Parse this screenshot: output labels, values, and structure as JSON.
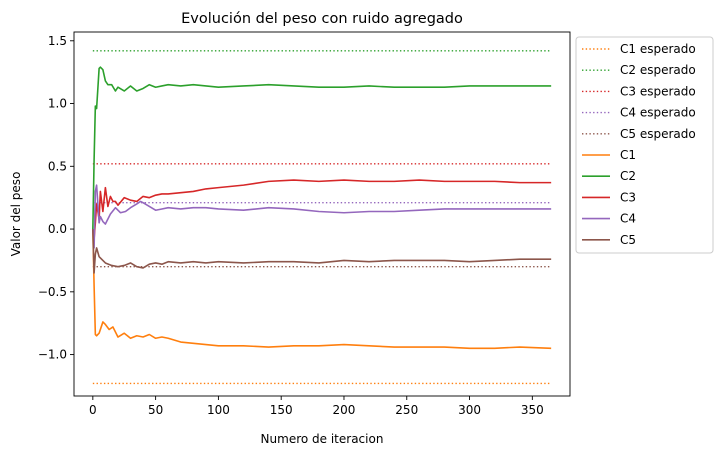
{
  "chart_data": {
    "type": "line",
    "title": "Evolución del peso con ruido agregado",
    "xlabel": "Numero de iteracion",
    "ylabel": "Valor del peso",
    "xlim": [
      -15,
      380
    ],
    "ylim": [
      -1.33,
      1.57
    ],
    "xticks": [
      0,
      50,
      100,
      150,
      200,
      250,
      300,
      350
    ],
    "yticks": [
      -1.0,
      -0.5,
      0.0,
      0.5,
      1.0,
      1.5
    ],
    "ytick_labels": [
      "−1.0",
      "−0.5",
      "0.0",
      "0.5",
      "1.0",
      "1.5"
    ],
    "grid": false,
    "legend_position": "outside-right-top",
    "expected": [
      {
        "name": "C1 esperado",
        "color": "#ff7f0e",
        "x": [
          0,
          365
        ],
        "value": -1.23
      },
      {
        "name": "C2 esperado",
        "color": "#2ca02c",
        "x": [
          0,
          365
        ],
        "value": 1.42
      },
      {
        "name": "C3 esperado",
        "color": "#d62728",
        "x": [
          0,
          365
        ],
        "value": 0.52
      },
      {
        "name": "C4 esperado",
        "color": "#9467bd",
        "x": [
          0,
          365
        ],
        "value": 0.21
      },
      {
        "name": "C5 esperado",
        "color": "#8c564b",
        "x": [
          0,
          365
        ],
        "value": -0.3
      }
    ],
    "series": [
      {
        "name": "C1",
        "color": "#ff7f0e",
        "x": [
          0,
          1,
          2,
          3,
          5,
          8,
          10,
          13,
          16,
          20,
          25,
          30,
          35,
          40,
          45,
          50,
          55,
          60,
          70,
          80,
          90,
          100,
          120,
          140,
          160,
          180,
          200,
          220,
          240,
          260,
          280,
          300,
          320,
          340,
          365
        ],
        "y": [
          0.0,
          -0.45,
          -0.84,
          -0.85,
          -0.83,
          -0.74,
          -0.76,
          -0.8,
          -0.78,
          -0.86,
          -0.83,
          -0.87,
          -0.85,
          -0.86,
          -0.84,
          -0.87,
          -0.86,
          -0.87,
          -0.9,
          -0.91,
          -0.92,
          -0.93,
          -0.93,
          -0.94,
          -0.93,
          -0.93,
          -0.92,
          -0.93,
          -0.94,
          -0.94,
          -0.94,
          -0.95,
          -0.95,
          -0.94,
          -0.95
        ]
      },
      {
        "name": "C2",
        "color": "#2ca02c",
        "x": [
          0,
          1,
          2,
          3,
          4,
          5,
          6,
          8,
          10,
          12,
          15,
          18,
          20,
          25,
          30,
          35,
          40,
          45,
          50,
          55,
          60,
          70,
          80,
          90,
          100,
          120,
          140,
          160,
          180,
          200,
          220,
          240,
          260,
          280,
          300,
          320,
          340,
          365
        ],
        "y": [
          0.0,
          0.55,
          0.98,
          0.96,
          1.12,
          1.28,
          1.29,
          1.27,
          1.18,
          1.15,
          1.15,
          1.1,
          1.13,
          1.1,
          1.14,
          1.1,
          1.12,
          1.15,
          1.13,
          1.14,
          1.15,
          1.14,
          1.15,
          1.14,
          1.13,
          1.14,
          1.15,
          1.14,
          1.13,
          1.13,
          1.14,
          1.13,
          1.13,
          1.13,
          1.14,
          1.14,
          1.14,
          1.14
        ]
      },
      {
        "name": "C3",
        "color": "#d62728",
        "x": [
          0,
          1,
          2,
          3,
          5,
          6,
          8,
          10,
          12,
          14,
          16,
          18,
          20,
          25,
          30,
          35,
          40,
          45,
          50,
          55,
          60,
          70,
          80,
          90,
          100,
          120,
          140,
          160,
          180,
          200,
          220,
          240,
          260,
          280,
          300,
          320,
          340,
          365
        ],
        "y": [
          0.0,
          -0.08,
          0.05,
          0.2,
          0.08,
          0.3,
          0.14,
          0.33,
          0.18,
          0.26,
          0.22,
          0.22,
          0.19,
          0.25,
          0.23,
          0.22,
          0.26,
          0.25,
          0.27,
          0.28,
          0.28,
          0.29,
          0.3,
          0.32,
          0.33,
          0.35,
          0.38,
          0.39,
          0.38,
          0.39,
          0.38,
          0.38,
          0.39,
          0.38,
          0.38,
          0.38,
          0.37,
          0.37
        ]
      },
      {
        "name": "C4",
        "color": "#9467bd",
        "x": [
          0,
          1,
          2,
          3,
          4,
          5,
          6,
          8,
          10,
          14,
          18,
          22,
          26,
          30,
          35,
          38,
          40,
          45,
          50,
          55,
          60,
          70,
          80,
          90,
          100,
          120,
          140,
          160,
          180,
          200,
          220,
          240,
          260,
          280,
          300,
          320,
          340,
          365
        ],
        "y": [
          0.0,
          -0.15,
          0.3,
          0.35,
          0.2,
          0.05,
          0.1,
          0.06,
          0.04,
          0.12,
          0.17,
          0.13,
          0.14,
          0.17,
          0.2,
          0.22,
          0.21,
          0.18,
          0.15,
          0.16,
          0.17,
          0.16,
          0.17,
          0.17,
          0.16,
          0.15,
          0.17,
          0.16,
          0.14,
          0.13,
          0.14,
          0.14,
          0.15,
          0.16,
          0.16,
          0.16,
          0.16,
          0.16
        ]
      },
      {
        "name": "C5",
        "color": "#8c564b",
        "x": [
          0,
          1,
          2,
          3,
          5,
          8,
          10,
          15,
          20,
          25,
          30,
          35,
          40,
          45,
          50,
          55,
          60,
          70,
          80,
          90,
          100,
          120,
          140,
          160,
          180,
          200,
          220,
          240,
          260,
          280,
          300,
          320,
          340,
          365
        ],
        "y": [
          0.0,
          -0.35,
          -0.2,
          -0.15,
          -0.22,
          -0.25,
          -0.27,
          -0.29,
          -0.3,
          -0.29,
          -0.27,
          -0.3,
          -0.31,
          -0.28,
          -0.27,
          -0.28,
          -0.26,
          -0.27,
          -0.26,
          -0.27,
          -0.26,
          -0.27,
          -0.26,
          -0.26,
          -0.27,
          -0.25,
          -0.26,
          -0.25,
          -0.25,
          -0.25,
          -0.26,
          -0.25,
          -0.24,
          -0.24
        ]
      }
    ]
  }
}
